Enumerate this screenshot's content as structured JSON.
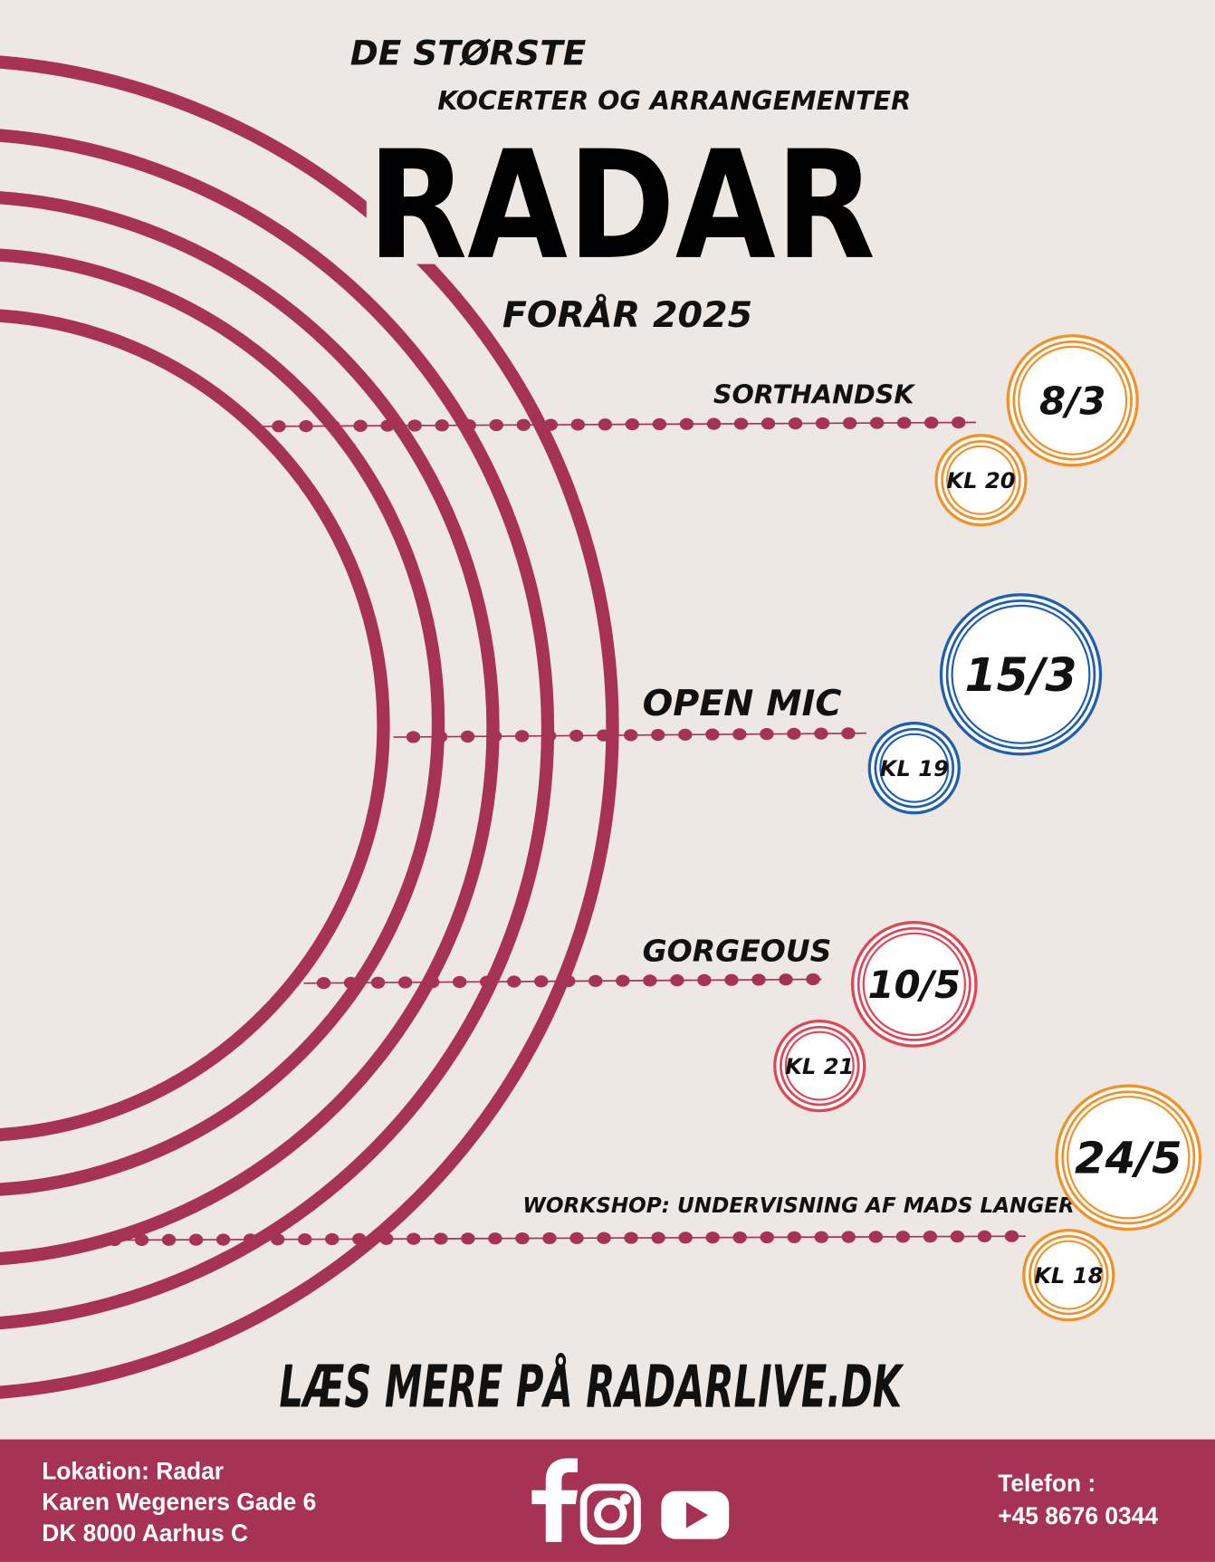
{
  "header": {
    "line1": "DE STØRSTE",
    "line2": "KOCERTER OG ARRANGEMENTER",
    "title": "RADAR",
    "season": "FORÅR 2025"
  },
  "events": [
    {
      "name": "SORTHANDSK",
      "date": "8/3",
      "time": "KL 20"
    },
    {
      "name": "OPEN MIC",
      "date": "15/3",
      "time": "KL 19"
    },
    {
      "name": "GORGEOUS",
      "date": "10/5",
      "time": "KL 21"
    },
    {
      "name": "WORKSHOP: UNDERVISNING AF MADS LANGER",
      "date": "24/5",
      "time": "KL 18"
    }
  ],
  "cta": "LÆS MERE PÅ RADARLIVE.DK",
  "footer": {
    "location": [
      "Lokation: Radar",
      "Karen Wegeners Gade 6",
      "DK 8000 Aarhus C"
    ],
    "phone": [
      "Telefon :",
      "+45 8676 0344"
    ]
  }
}
